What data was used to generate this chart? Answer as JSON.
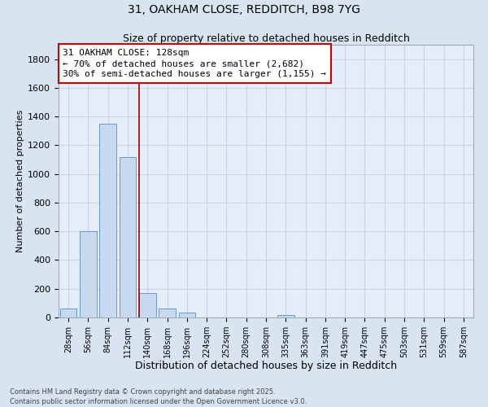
{
  "title1": "31, OAKHAM CLOSE, REDDITCH, B98 7YG",
  "title2": "Size of property relative to detached houses in Redditch",
  "xlabel": "Distribution of detached houses by size in Redditch",
  "ylabel": "Number of detached properties",
  "categories": [
    "28sqm",
    "56sqm",
    "84sqm",
    "112sqm",
    "140sqm",
    "168sqm",
    "196sqm",
    "224sqm",
    "252sqm",
    "280sqm",
    "308sqm",
    "335sqm",
    "363sqm",
    "391sqm",
    "419sqm",
    "447sqm",
    "475sqm",
    "503sqm",
    "531sqm",
    "559sqm",
    "587sqm"
  ],
  "values": [
    60,
    600,
    1350,
    1120,
    170,
    60,
    35,
    0,
    0,
    0,
    0,
    15,
    0,
    0,
    0,
    0,
    0,
    0,
    0,
    0,
    0
  ],
  "bar_color": "#c8d8ee",
  "bar_edge_color": "#6699cc",
  "grid_color": "#c8d4e4",
  "background_color": "#d8e4f0",
  "plot_bg_color": "#e4edf8",
  "vline_color": "#990000",
  "annotation_text": "31 OAKHAM CLOSE: 128sqm\n← 70% of detached houses are smaller (2,682)\n30% of semi-detached houses are larger (1,155) →",
  "annotation_box_color": "#ffffff",
  "annotation_box_edge": "#cc0000",
  "ylim": [
    0,
    1900
  ],
  "yticks": [
    0,
    200,
    400,
    600,
    800,
    1000,
    1200,
    1400,
    1600,
    1800
  ],
  "footer1": "Contains HM Land Registry data © Crown copyright and database right 2025.",
  "footer2": "Contains public sector information licensed under the Open Government Licence v3.0."
}
